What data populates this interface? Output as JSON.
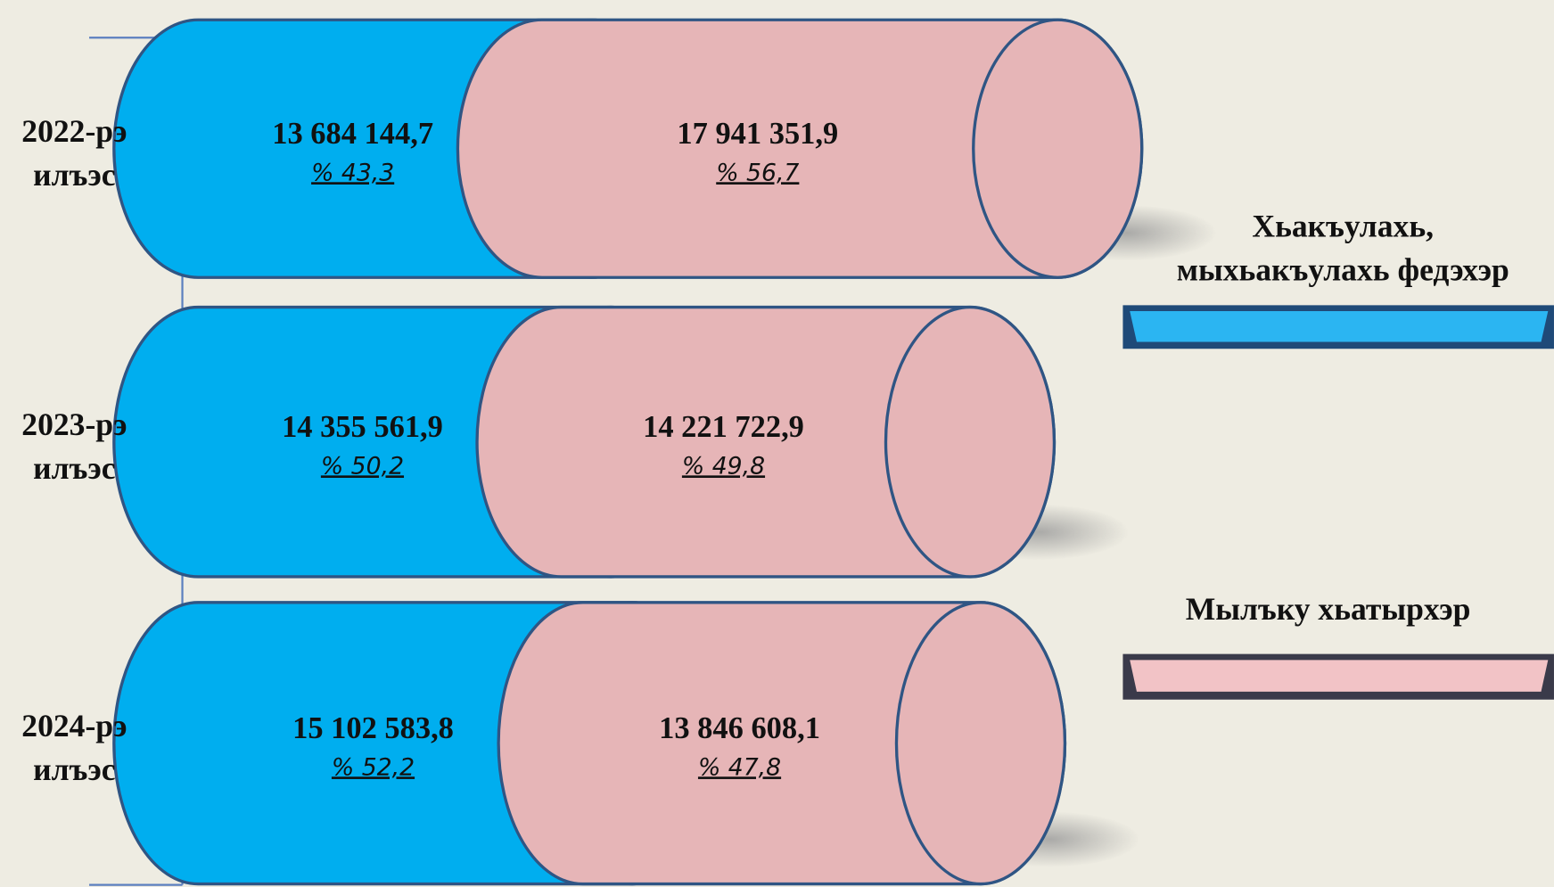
{
  "chart_data": {
    "type": "cylinder-bar",
    "categories": [
      "2022-рэ\nилъэс",
      "2023-рэ\nилъэс",
      "2024-рэ\nилъэс"
    ],
    "series": [
      {
        "name": "Хьакъулахь,\nмыхьакъулахь федэхэр",
        "color": "#00aeef",
        "values": [
          13684144.7,
          14355561.9,
          15102583.8
        ],
        "value_labels": [
          "13 684 144,7",
          "14 355 561,9",
          "15 102 583,8"
        ],
        "share_labels": [
          "% 43,3",
          "% 50,2",
          "% 52,2"
        ]
      },
      {
        "name": "Мылъку хьатырхэр",
        "color": "#e6b5b7",
        "values": [
          17941351.9,
          14221722.9,
          13846608.1
        ],
        "value_labels": [
          "17 941 351,9",
          "14 221 722,9",
          "13 846 608,1"
        ],
        "share_labels": [
          "% 56,7",
          "% 49,8",
          "% 47,8"
        ]
      }
    ]
  }
}
